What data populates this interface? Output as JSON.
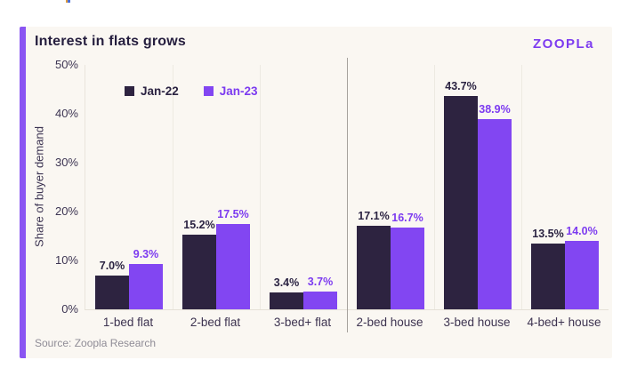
{
  "card": {
    "title": "Interest in flats grows",
    "logo": "ZOOPLa",
    "source": "Source: Zoopla Research"
  },
  "colors": {
    "card_background": "#faf7f2",
    "accent_bar": "#8a55f2",
    "logo_purple": "#7d3cf0",
    "jan22_bar": "#2d2340",
    "jan23_bar": "#8246f2",
    "jan22_label_text": "#2b2342",
    "jan23_label_text": "#7c3bf0",
    "axis_text": "#3d3553",
    "separator_line": "#a6a29d"
  },
  "chart_data": {
    "type": "bar",
    "title": "Interest in flats grows",
    "xlabel": "",
    "ylabel": "Share of buyer demand",
    "categories": [
      "1-bed flat",
      "2-bed flat",
      "3-bed+ flat",
      "2-bed house",
      "3-bed house",
      "4-bed+ house"
    ],
    "series": [
      {
        "name": "Jan-22",
        "color": "#2d2340",
        "label_color": "#2b2342",
        "values": [
          7.0,
          15.2,
          3.4,
          17.1,
          43.7,
          13.5
        ],
        "labels": [
          "7.0%",
          "15.2%",
          "3.4%",
          "17.1%",
          "43.7%",
          "13.5%"
        ]
      },
      {
        "name": "Jan-23",
        "color": "#8246f2",
        "label_color": "#7c3bf0",
        "values": [
          9.3,
          17.5,
          3.7,
          16.7,
          38.9,
          14.0
        ],
        "labels": [
          "9.3%",
          "17.5%",
          "3.7%",
          "16.7%",
          "38.9%",
          "14.0%"
        ]
      }
    ],
    "yticks": [
      "50%",
      "40%",
      "30%",
      "20%",
      "10%",
      "0%"
    ],
    "ylim": [
      0,
      50
    ],
    "grid": "vertical-category-dividers",
    "separator_after_category_index": 2,
    "legend_position": "top-left-inside"
  }
}
